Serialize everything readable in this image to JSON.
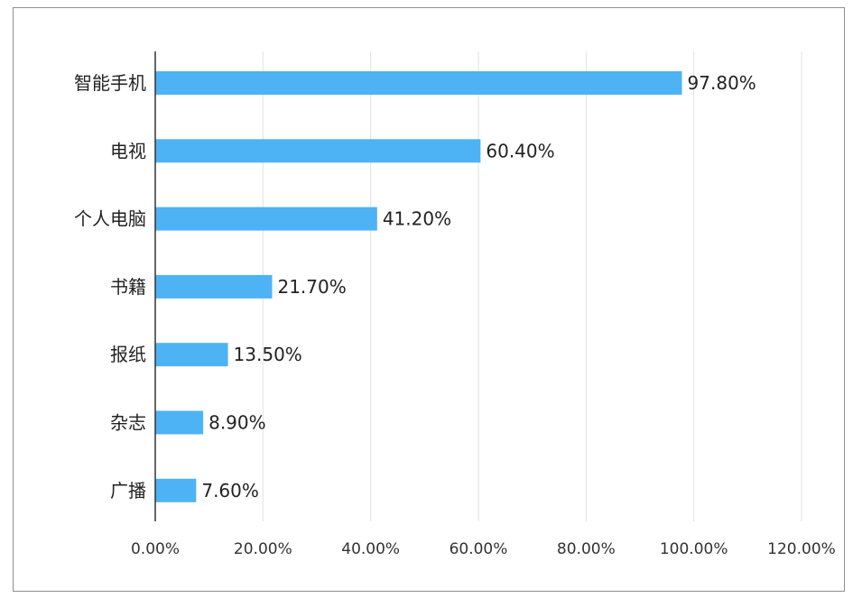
{
  "chart_data": {
    "type": "bar",
    "orientation": "horizontal",
    "categories": [
      "智能手机",
      "电视",
      "个人电脑",
      "书籍",
      "报纸",
      "杂志",
      "广播"
    ],
    "values": [
      97.8,
      60.4,
      41.2,
      21.7,
      13.5,
      8.9,
      7.6
    ],
    "value_labels": [
      "97.80%",
      "60.40%",
      "41.20%",
      "21.70%",
      "13.50%",
      "8.90%",
      "7.60%"
    ],
    "x_ticks": [
      0,
      20,
      40,
      60,
      80,
      100,
      120
    ],
    "x_tick_labels": [
      "0.00%",
      "20.00%",
      "40.00%",
      "60.00%",
      "80.00%",
      "100.00%",
      "120.00%"
    ],
    "xlim": [
      0,
      120
    ],
    "grid": "vertical",
    "bar_color": "#4db3f5",
    "grid_color": "#e2e2e2",
    "axis_color": "#333333"
  }
}
